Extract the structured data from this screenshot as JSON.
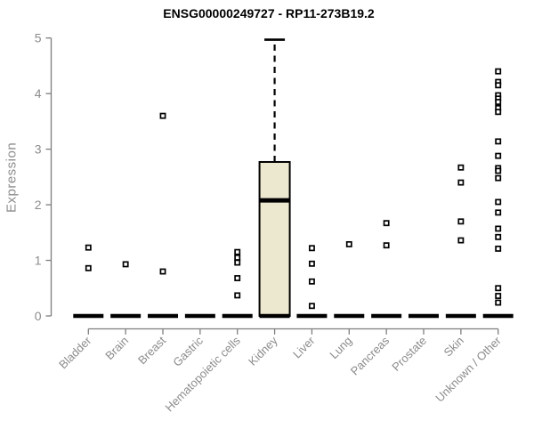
{
  "chart_data": {
    "type": "boxplot",
    "title": "ENSG00000249727 - RP11-273B19.2",
    "ylabel": "Expression",
    "xlabel": "",
    "ylim": [
      0,
      5
    ],
    "yticks": [
      0,
      1,
      2,
      3,
      4,
      5
    ],
    "grid": false,
    "legend": "none",
    "categories": [
      "Bladder",
      "Brain",
      "Breast",
      "Gastric",
      "Hematopoietic cells",
      "Kidney",
      "Liver",
      "Lung",
      "Pancreas",
      "Prostate",
      "Skin",
      "Unknown / Other"
    ],
    "boxes": [
      {
        "category": "Bladder",
        "q1": 0,
        "median": 0,
        "q3": 0,
        "whisker_low": 0,
        "whisker_high": 0,
        "outliers": [
          1.23,
          0.86
        ]
      },
      {
        "category": "Brain",
        "q1": 0,
        "median": 0,
        "q3": 0,
        "whisker_low": 0,
        "whisker_high": 0,
        "outliers": [
          0.93
        ]
      },
      {
        "category": "Breast",
        "q1": 0,
        "median": 0,
        "q3": 0,
        "whisker_low": 0,
        "whisker_high": 0,
        "outliers": [
          3.6,
          0.8
        ]
      },
      {
        "category": "Gastric",
        "q1": 0,
        "median": 0,
        "q3": 0,
        "whisker_low": 0,
        "whisker_high": 0,
        "outliers": []
      },
      {
        "category": "Hematopoietic cells",
        "q1": 0,
        "median": 0,
        "q3": 0,
        "whisker_low": 0,
        "whisker_high": 0,
        "outliers": [
          1.15,
          1.05,
          0.96,
          0.68,
          0.37
        ]
      },
      {
        "category": "Kidney",
        "q1": 0,
        "median": 2.08,
        "q3": 2.77,
        "whisker_low": 0,
        "whisker_high": 4.97,
        "outliers": []
      },
      {
        "category": "Liver",
        "q1": 0,
        "median": 0,
        "q3": 0,
        "whisker_low": 0,
        "whisker_high": 0,
        "outliers": [
          1.22,
          0.94,
          0.62,
          0.18
        ]
      },
      {
        "category": "Lung",
        "q1": 0,
        "median": 0,
        "q3": 0,
        "whisker_low": 0,
        "whisker_high": 0,
        "outliers": [
          1.29
        ]
      },
      {
        "category": "Pancreas",
        "q1": 0,
        "median": 0,
        "q3": 0,
        "whisker_low": 0,
        "whisker_high": 0,
        "outliers": [
          1.67,
          1.27
        ]
      },
      {
        "category": "Prostate",
        "q1": 0,
        "median": 0,
        "q3": 0,
        "whisker_low": 0,
        "whisker_high": 0,
        "outliers": []
      },
      {
        "category": "Skin",
        "q1": 0,
        "median": 0,
        "q3": 0,
        "whisker_low": 0,
        "whisker_high": 0,
        "outliers": [
          2.67,
          2.4,
          1.7,
          1.36
        ]
      },
      {
        "category": "Unknown / Other",
        "q1": 0,
        "median": 0,
        "q3": 0,
        "whisker_low": 0,
        "whisker_high": 0,
        "outliers": [
          4.4,
          4.21,
          4.15,
          3.97,
          3.91,
          3.85,
          3.74,
          3.67,
          3.14,
          2.88,
          2.66,
          2.61,
          2.48,
          2.05,
          1.86,
          1.57,
          1.42,
          1.21,
          0.5,
          0.36,
          0.24
        ]
      }
    ],
    "colors": {
      "box_fill": "#ECE7CF",
      "box_stroke": "#000000",
      "median": "#000000",
      "outlier_stroke": "#000000",
      "outlier_fill": "#FFFFFF",
      "axis": "#7E7E7E",
      "tick_text": "#8C8C8C",
      "title_text": "#000000",
      "background": "#FFFFFF"
    }
  }
}
